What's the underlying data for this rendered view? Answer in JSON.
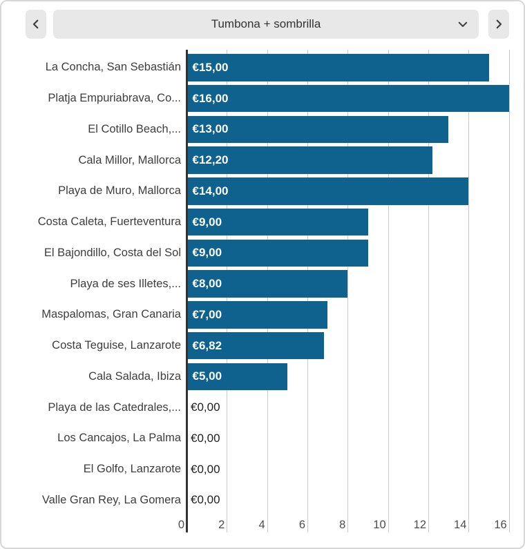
{
  "header": {
    "selected_metric": "Tumbona + sombrilla",
    "prev_icon": "chevron-left",
    "next_icon": "chevron-right",
    "dropdown_icon": "chevron-down"
  },
  "chart_data": {
    "type": "bar",
    "orientation": "horizontal",
    "title": "Tumbona + sombrilla",
    "categories": [
      "La Concha, San Sebastián",
      "Platja Empuriabrava, Co...",
      "El Cotillo Beach,...",
      "Cala Millor, Mallorca",
      "Playa de Muro, Mallorca",
      "Costa Caleta, Fuerteventura",
      "El Bajondillo, Costa del Sol",
      "Playa de ses Illetes,...",
      "Maspalomas, Gran Canaria",
      "Costa Teguise, Lanzarote",
      "Cala Salada, Ibiza",
      "Playa de las Catedrales,...",
      "Los Cancajos, La Palma",
      "El Golfo, Lanzarote",
      "Valle Gran Rey, La Gomera"
    ],
    "values": [
      15,
      16,
      13,
      12.2,
      14,
      9,
      9,
      8,
      7,
      6.82,
      5,
      0,
      0,
      0,
      0
    ],
    "value_labels": [
      "€15,00",
      "€16,00",
      "€13,00",
      "€12,20",
      "€14,00",
      "€9,00",
      "€9,00",
      "€8,00",
      "€7,00",
      "€6,82",
      "€5,00",
      "€0,00",
      "€0,00",
      "€0,00",
      "€0,00"
    ],
    "xlim": [
      0,
      16
    ],
    "xticks": [
      0,
      2,
      4,
      6,
      8,
      10,
      12,
      14,
      16
    ],
    "grid": true,
    "legend": false,
    "xlabel": "",
    "ylabel": "",
    "bar_color": "#0f618e"
  },
  "colors": {
    "bar": "#0f618e",
    "button_bg": "#e8e8e8",
    "icon": "#3f3f3f",
    "category_text": "#3d3d3d",
    "value_text_on_bar": "#ffffff",
    "value_text_zero": "#212121",
    "tick_text": "#4d4d4d",
    "gridline": "#c9c9c9",
    "axis": "#333333",
    "card_border": "#d7d7d7"
  }
}
